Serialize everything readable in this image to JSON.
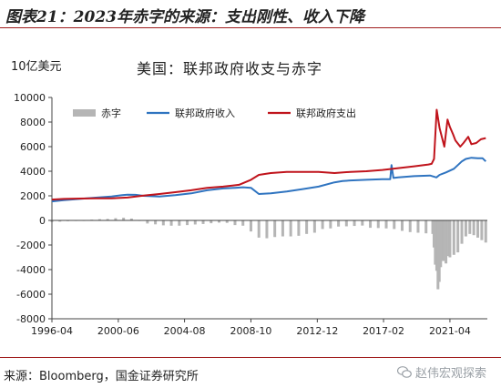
{
  "figure_title": "图表21：2023年赤字的来源：支出刚性、收入下降",
  "unit_label": "10亿美元",
  "source_note": "来源：Bloomberg，国金证券研究所",
  "watermark": "赵伟宏观探索",
  "colors": {
    "rule": "#a01c1c",
    "revenue": "#2f74c0",
    "expenditure": "#c0141c",
    "deficit": "#b5b5b5"
  },
  "chart_data": {
    "type": "line",
    "title": "美国：联邦政府收支与赤字",
    "xlabel": "",
    "ylabel": "10亿美元",
    "ylim": [
      -8000,
      10000
    ],
    "yticks": [
      -8000,
      -6000,
      -4000,
      -2000,
      0,
      2000,
      4000,
      6000,
      8000,
      10000
    ],
    "xlim": [
      1996.25,
      2023.6
    ],
    "xticks": [
      {
        "label": "1996-04",
        "x": 1996.25
      },
      {
        "label": "2000-06",
        "x": 2000.42
      },
      {
        "label": "2004-08",
        "x": 2004.58
      },
      {
        "label": "2008-10",
        "x": 2008.75
      },
      {
        "label": "2012-12",
        "x": 2012.92
      },
      {
        "label": "2017-02",
        "x": 2017.08
      },
      {
        "label": "2021-04",
        "x": 2021.25
      }
    ],
    "grid": false,
    "legend_position": "top",
    "series": [
      {
        "name": "赤字",
        "kind": "bar",
        "color": "#b5b5b5",
        "x": [
          1996.25,
          1996.75,
          1997.25,
          1997.75,
          1998.25,
          1998.75,
          1999.25,
          1999.75,
          2000.25,
          2000.75,
          2001.25,
          2001.75,
          2002.25,
          2002.75,
          2003.25,
          2003.75,
          2004.25,
          2004.75,
          2005.25,
          2005.75,
          2006.25,
          2006.75,
          2007.25,
          2007.75,
          2008.25,
          2008.75,
          2009.25,
          2009.75,
          2010.25,
          2010.75,
          2011.25,
          2011.75,
          2012.25,
          2012.75,
          2013.25,
          2013.75,
          2014.25,
          2014.75,
          2015.25,
          2015.75,
          2016.25,
          2016.75,
          2017.25,
          2017.75,
          2018.25,
          2018.75,
          2019.25,
          2019.75,
          2020.17,
          2020.25,
          2020.33,
          2020.42,
          2020.5,
          2020.58,
          2020.67,
          2020.75,
          2020.83,
          2021.0,
          2021.17,
          2021.25,
          2021.5,
          2021.75,
          2022.0,
          2022.25,
          2022.5,
          2022.75,
          2023.0,
          2023.25,
          2023.5
        ],
        "values": [
          -120,
          -100,
          -60,
          -30,
          0,
          60,
          100,
          120,
          180,
          220,
          150,
          -20,
          -250,
          -320,
          -400,
          -430,
          -430,
          -380,
          -330,
          -290,
          -230,
          -180,
          -200,
          -380,
          -430,
          -900,
          -1400,
          -1450,
          -1350,
          -1300,
          -1300,
          -1250,
          -1100,
          -1000,
          -700,
          -650,
          -500,
          -480,
          -450,
          -420,
          -600,
          -620,
          -650,
          -700,
          -850,
          -950,
          -1000,
          -1050,
          -1100,
          -2200,
          -3600,
          -4100,
          -5600,
          -5000,
          -3800,
          -3200,
          -3300,
          -3500,
          -2900,
          -3000,
          -2800,
          -2600,
          -1900,
          -1300,
          -1100,
          -1200,
          -1400,
          -1600,
          -1800
        ]
      },
      {
        "name": "联邦政府收入",
        "kind": "line",
        "color": "#2f74c0",
        "x": [
          1996.25,
          1997.0,
          1998.0,
          1999.0,
          2000.0,
          2000.67,
          2001.0,
          2001.5,
          2002.0,
          2003.0,
          2004.0,
          2005.0,
          2006.0,
          2007.0,
          2007.75,
          2008.25,
          2008.75,
          2009.25,
          2010.0,
          2011.0,
          2012.0,
          2013.0,
          2014.0,
          2014.5,
          2015.0,
          2016.0,
          2017.0,
          2017.5,
          2017.58,
          2017.7,
          2018.0,
          2019.0,
          2020.0,
          2020.4,
          2020.6,
          2021.0,
          2021.5,
          2022.0,
          2022.25,
          2022.6,
          2023.0,
          2023.3,
          2023.5
        ],
        "values": [
          1550,
          1650,
          1750,
          1850,
          1950,
          2050,
          2100,
          2080,
          2000,
          1950,
          2050,
          2200,
          2450,
          2600,
          2650,
          2700,
          2650,
          2150,
          2200,
          2350,
          2550,
          2750,
          3100,
          3200,
          3250,
          3300,
          3350,
          3350,
          4500,
          3450,
          3500,
          3600,
          3650,
          3500,
          3700,
          3900,
          4200,
          4800,
          5000,
          5100,
          5050,
          5050,
          4800
        ]
      },
      {
        "name": "联邦政府支出",
        "kind": "line",
        "color": "#c0141c",
        "x": [
          1996.25,
          1997.0,
          1998.0,
          1999.0,
          2000.0,
          2001.0,
          2002.0,
          2003.0,
          2004.0,
          2005.0,
          2006.0,
          2007.0,
          2008.0,
          2008.75,
          2009.25,
          2010.0,
          2011.0,
          2012.0,
          2013.0,
          2014.0,
          2015.0,
          2016.0,
          2017.0,
          2018.0,
          2019.0,
          2019.9,
          2020.1,
          2020.25,
          2020.42,
          2020.6,
          2020.9,
          2021.1,
          2021.25,
          2021.45,
          2021.6,
          2021.9,
          2022.1,
          2022.4,
          2022.6,
          2022.9,
          2023.2,
          2023.5
        ],
        "values": [
          1700,
          1750,
          1780,
          1790,
          1800,
          1860,
          2020,
          2150,
          2300,
          2450,
          2650,
          2750,
          2900,
          3300,
          3700,
          3850,
          3950,
          3950,
          3950,
          3850,
          3950,
          4000,
          4100,
          4250,
          4400,
          4550,
          4600,
          5000,
          9000,
          7500,
          6000,
          8200,
          7600,
          7000,
          6500,
          6000,
          6300,
          6800,
          6200,
          6300,
          6600,
          6700
        ]
      }
    ]
  }
}
